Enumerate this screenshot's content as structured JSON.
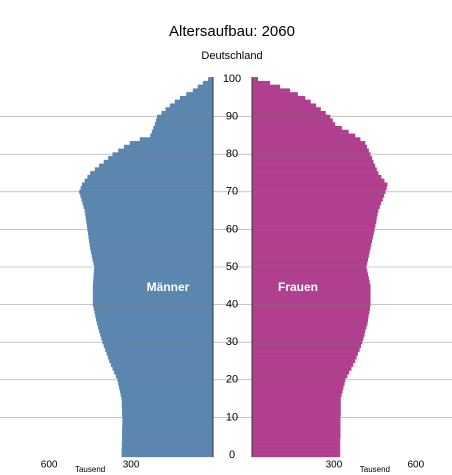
{
  "chart_data": {
    "type": "pyramid",
    "title": "Altersaufbau: 2060",
    "subtitle": "Deutschland",
    "xlabel": "Tausend",
    "x": [
      0,
      1,
      2,
      3,
      4,
      5,
      6,
      7,
      8,
      9,
      10,
      11,
      12,
      13,
      14,
      15,
      16,
      17,
      18,
      19,
      20,
      21,
      22,
      23,
      24,
      25,
      26,
      27,
      28,
      29,
      30,
      31,
      32,
      33,
      34,
      35,
      36,
      37,
      38,
      39,
      40,
      41,
      42,
      43,
      44,
      45,
      46,
      47,
      48,
      49,
      50,
      51,
      52,
      53,
      54,
      55,
      56,
      57,
      58,
      59,
      60,
      61,
      62,
      63,
      64,
      65,
      66,
      67,
      68,
      69,
      70,
      71,
      72,
      73,
      74,
      75,
      76,
      77,
      78,
      79,
      80,
      81,
      82,
      83,
      84,
      85,
      86,
      87,
      88,
      89,
      90,
      91,
      92,
      93,
      94,
      95,
      96,
      97,
      98,
      99,
      100
    ],
    "series": [
      {
        "name": "Männer",
        "color": "#5b86b0",
        "values": [
          335,
          335,
          334,
          334,
          333,
          333,
          333,
          333,
          332,
          332,
          332,
          333,
          333,
          334,
          334,
          335,
          338,
          341,
          344,
          347,
          350,
          356,
          362,
          368,
          374,
          380,
          385,
          390,
          395,
          400,
          405,
          409,
          413,
          417,
          421,
          425,
          428,
          431,
          434,
          437,
          440,
          440,
          440,
          440,
          440,
          440,
          439,
          438,
          437,
          436,
          435,
          438,
          441,
          444,
          447,
          450,
          452,
          454,
          456,
          458,
          460,
          462,
          464,
          466,
          468,
          470,
          474,
          478,
          482,
          486,
          490,
          485,
          480,
          470,
          460,
          450,
          433,
          417,
          400,
          384,
          368,
          347,
          326,
          305,
          268,
          230,
          224,
          219,
          213,
          209,
          205,
          189,
          174,
          158,
          140,
          121,
          98,
          74,
          56,
          37,
          18
        ]
      },
      {
        "name": "Frauen",
        "color": "#b0408f",
        "values": [
          323,
          323,
          323,
          323,
          323,
          324,
          324,
          324,
          324,
          324,
          324,
          325,
          325,
          325,
          325,
          325,
          328,
          332,
          335,
          339,
          342,
          349,
          356,
          364,
          371,
          378,
          383,
          388,
          394,
          399,
          404,
          408,
          412,
          415,
          419,
          423,
          425,
          427,
          430,
          432,
          434,
          434,
          434,
          434,
          434,
          434,
          431,
          428,
          425,
          422,
          419,
          422,
          425,
          428,
          431,
          434,
          437,
          440,
          443,
          446,
          449,
          452,
          455,
          457,
          460,
          463,
          468,
          473,
          479,
          484,
          489,
          493,
          496,
          485,
          474,
          463,
          457,
          451,
          445,
          440,
          434,
          428,
          421,
          415,
          397,
          378,
          354,
          329,
          305,
          296,
          287,
          270,
          252,
          235,
          215,
          195,
          168,
          140,
          103,
          66,
          22
        ]
      }
    ],
    "xlim": [
      0,
      780
    ],
    "xticks": [
      300,
      600
    ],
    "ylim": [
      0,
      100
    ],
    "yticks": [
      0,
      10,
      20,
      30,
      40,
      50,
      60,
      70,
      80,
      90,
      100
    ],
    "grid": true
  }
}
